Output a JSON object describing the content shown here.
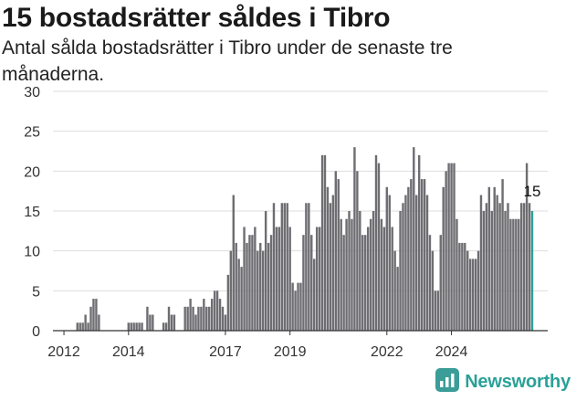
{
  "header": {
    "title": "15 bostadsrätter såldes i Tibro",
    "subtitle": "Antal sålda bostadsrätter i Tibro under de senaste tre månaderna."
  },
  "brand": {
    "name": "Newsworthy",
    "icon": "newsworthy-logo-icon",
    "color": "#3a9d97"
  },
  "colors": {
    "bar": "#6d6d72",
    "highlight": "#2aa198",
    "grid": "#dddddd",
    "axis": "#333333"
  },
  "chart_data": {
    "type": "bar",
    "title": "15 bostadsrätter såldes i Tibro",
    "subtitle": "Antal sålda bostadsrätter i Tibro under de senaste tre månaderna.",
    "frequency": "monthly, rolling three-month totals",
    "start": "2011-10",
    "ylim": [
      0,
      30
    ],
    "yticks": [
      0,
      5,
      10,
      15,
      20,
      25,
      30
    ],
    "xticks": [
      {
        "label": "2012",
        "date": "2012-01"
      },
      {
        "label": "2014",
        "date": "2014-01"
      },
      {
        "label": "2017",
        "date": "2017-01"
      },
      {
        "label": "2019",
        "date": "2019-01"
      },
      {
        "label": "2022",
        "date": "2022-01"
      },
      {
        "label": "2024",
        "date": "2024-01"
      }
    ],
    "values": [
      0,
      0,
      0,
      0,
      0,
      0,
      0,
      0,
      1,
      1,
      1,
      2,
      1,
      3,
      4,
      4,
      2,
      0,
      0,
      0,
      0,
      0,
      0,
      0,
      0,
      0,
      0,
      1,
      1,
      1,
      1,
      1,
      1,
      0,
      3,
      2,
      2,
      0,
      0,
      0,
      1,
      1,
      3,
      2,
      2,
      0,
      0,
      0,
      3,
      3,
      4,
      3,
      2,
      3,
      3,
      4,
      3,
      3,
      4,
      5,
      5,
      4,
      3,
      2,
      7,
      10,
      17,
      11,
      9,
      8,
      13,
      11,
      12,
      12,
      13,
      10,
      11,
      10,
      15,
      11,
      12,
      16,
      13,
      13,
      16,
      16,
      16,
      13,
      6,
      5,
      6,
      6,
      12,
      16,
      16,
      12,
      9,
      13,
      13,
      22,
      22,
      18,
      16,
      17,
      20,
      19,
      14,
      12,
      14,
      15,
      14,
      23,
      20,
      15,
      12,
      12,
      13,
      14,
      15,
      22,
      21,
      14,
      13,
      18,
      17,
      13,
      10,
      8,
      15,
      16,
      17,
      18,
      19,
      23,
      17,
      22,
      19,
      19,
      17,
      12,
      10,
      5,
      5,
      12,
      18,
      20,
      21,
      21,
      21,
      14,
      11,
      11,
      11,
      10,
      9,
      9,
      9,
      10,
      17,
      15,
      16,
      18,
      15,
      18,
      17,
      16,
      19,
      15,
      16,
      14,
      14,
      14,
      14,
      16,
      16,
      21,
      16,
      15
    ],
    "highlight_last": true,
    "last_value_label": "15"
  }
}
